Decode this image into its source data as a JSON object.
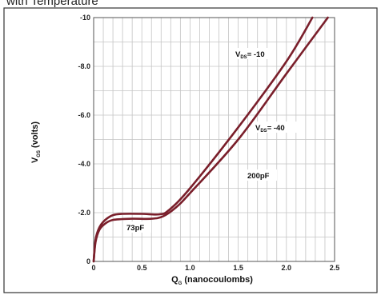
{
  "header_text": "with Temperature",
  "chart_data": {
    "type": "line",
    "xlabel": {
      "main": "Q",
      "sub": "G",
      "rest": " (nanocoulombs)"
    },
    "ylabel": {
      "main": "V",
      "sub": "GS",
      "rest": " (volts)"
    },
    "xlim": [
      0,
      2.5
    ],
    "ylim": [
      0,
      -10
    ],
    "x_tick_labels": [
      "0",
      "0.5",
      "1.0",
      "1.5",
      "2.0",
      "2.5"
    ],
    "x_tick_values": [
      0,
      0.5,
      1.0,
      1.5,
      2.0,
      2.5
    ],
    "y_tick_labels": [
      "0",
      "-2.0",
      "-4.0",
      "-6.0",
      "-8.0",
      "-10"
    ],
    "y_tick_values": [
      0,
      -2,
      -4,
      -6,
      -8,
      -10
    ],
    "grid": true,
    "series_color": "#7a1f2b",
    "series": [
      {
        "label_prefix": "V",
        "label_sub": "DS",
        "label_suffix": "= -10",
        "points": [
          [
            0,
            0
          ],
          [
            0.02,
            -0.9
          ],
          [
            0.06,
            -1.4
          ],
          [
            0.12,
            -1.7
          ],
          [
            0.2,
            -1.9
          ],
          [
            0.3,
            -1.95
          ],
          [
            0.5,
            -1.95
          ],
          [
            0.68,
            -1.93
          ],
          [
            0.78,
            -2.1
          ],
          [
            1.0,
            -3.0
          ],
          [
            1.5,
            -5.5
          ],
          [
            2.0,
            -8.2
          ],
          [
            2.27,
            -10
          ]
        ]
      },
      {
        "label_prefix": "V",
        "label_sub": "DS",
        "label_suffix": "= -40",
        "points": [
          [
            0,
            0
          ],
          [
            0.02,
            -0.8
          ],
          [
            0.06,
            -1.3
          ],
          [
            0.12,
            -1.55
          ],
          [
            0.2,
            -1.7
          ],
          [
            0.4,
            -1.75
          ],
          [
            0.6,
            -1.75
          ],
          [
            0.72,
            -1.85
          ],
          [
            0.85,
            -2.2
          ],
          [
            1.0,
            -2.8
          ],
          [
            1.5,
            -5.0
          ],
          [
            2.0,
            -7.7
          ],
          [
            2.43,
            -10
          ]
        ]
      }
    ],
    "annotations": [
      "73pF",
      "200pF"
    ]
  }
}
